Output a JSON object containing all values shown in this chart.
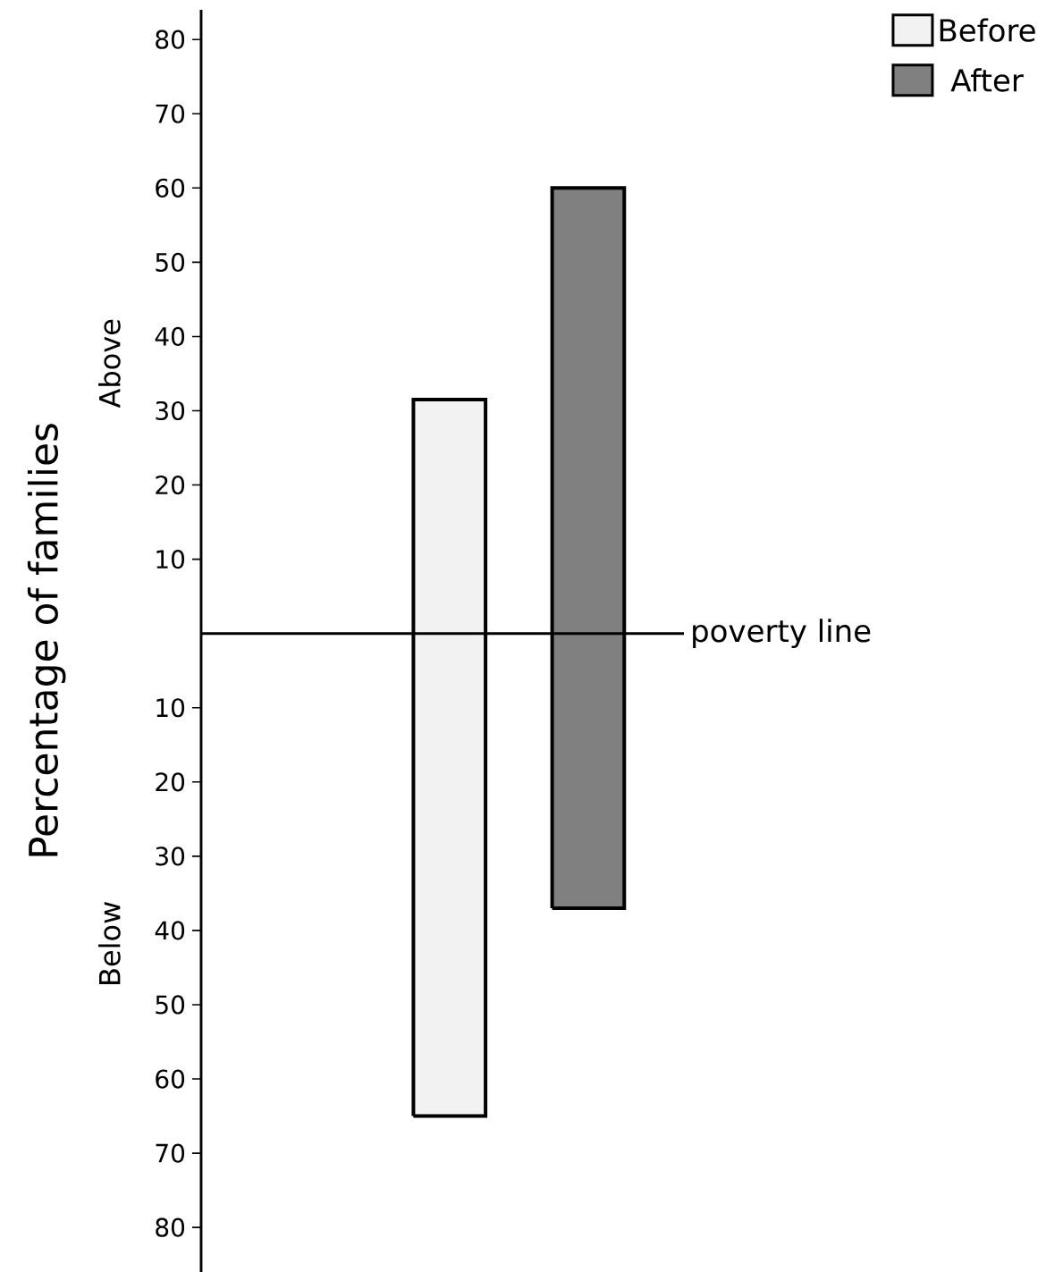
{
  "chart_data": {
    "type": "bar",
    "categories": [
      null
    ],
    "ylabel": "Percentage of families",
    "annotations": [
      "Above",
      "Below"
    ],
    "series": [
      {
        "name": "Before",
        "color": "#f2f2f2",
        "values": [
          96.5
        ],
        "base": [
          -65
        ]
      },
      {
        "name": "After",
        "color": "#808080",
        "values": [
          97
        ],
        "base": [
          -37
        ]
      }
    ],
    "ylim": [
      -86,
      84
    ],
    "yticks": [
      {
        "value": 80,
        "label": "80"
      },
      {
        "value": 70,
        "label": "70"
      },
      {
        "value": 60,
        "label": "60"
      },
      {
        "value": 50,
        "label": "50"
      },
      {
        "value": 40,
        "label": "40"
      },
      {
        "value": 30,
        "label": "30"
      },
      {
        "value": 20,
        "label": "20"
      },
      {
        "value": 10,
        "label": "10"
      },
      {
        "value": -10,
        "label": "10"
      },
      {
        "value": -20,
        "label": "20"
      },
      {
        "value": -30,
        "label": "30"
      },
      {
        "value": -40,
        "label": "40"
      },
      {
        "value": -50,
        "label": "50"
      },
      {
        "value": -60,
        "label": "60"
      },
      {
        "value": -70,
        "label": "70"
      },
      {
        "value": -80,
        "label": "80"
      }
    ],
    "ref_lines": [
      {
        "axis": "y",
        "value": 0,
        "label": "poverty line"
      }
    ],
    "legend": "top right"
  }
}
